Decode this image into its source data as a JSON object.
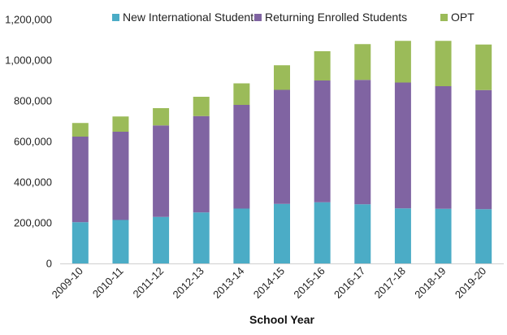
{
  "chart_data": {
    "type": "bar",
    "stacked": true,
    "categories": [
      "2009-10",
      "2010-11",
      "2011-12",
      "2012-13",
      "2013-14",
      "2014-15",
      "2015-16",
      "2016-17",
      "2017-18",
      "2018-19",
      "2019-20"
    ],
    "series": [
      {
        "name": "New International Students",
        "color": "#4bacc6",
        "values": [
          203000,
          214000,
          229000,
          251000,
          270000,
          293000,
          301000,
          291000,
          271000,
          269000,
          267000
        ]
      },
      {
        "name": "Returning Enrolled Students",
        "color": "#8064a2",
        "values": [
          421000,
          434000,
          450000,
          474000,
          510000,
          561000,
          599000,
          612000,
          619000,
          603000,
          586000
        ]
      },
      {
        "name": "OPT",
        "color": "#9bbb59",
        "values": [
          67000,
          75000,
          85000,
          95000,
          106000,
          121000,
          144000,
          176000,
          205000,
          223000,
          224000
        ]
      }
    ],
    "xlabel": "School Year",
    "ylabel": "",
    "ylim": [
      0,
      1200000
    ],
    "yticks": [
      "0",
      "200,000",
      "400,000",
      "600,000",
      "800,000",
      "1,000,000",
      "1,200,000"
    ],
    "grid": false,
    "legend_position": "top"
  }
}
